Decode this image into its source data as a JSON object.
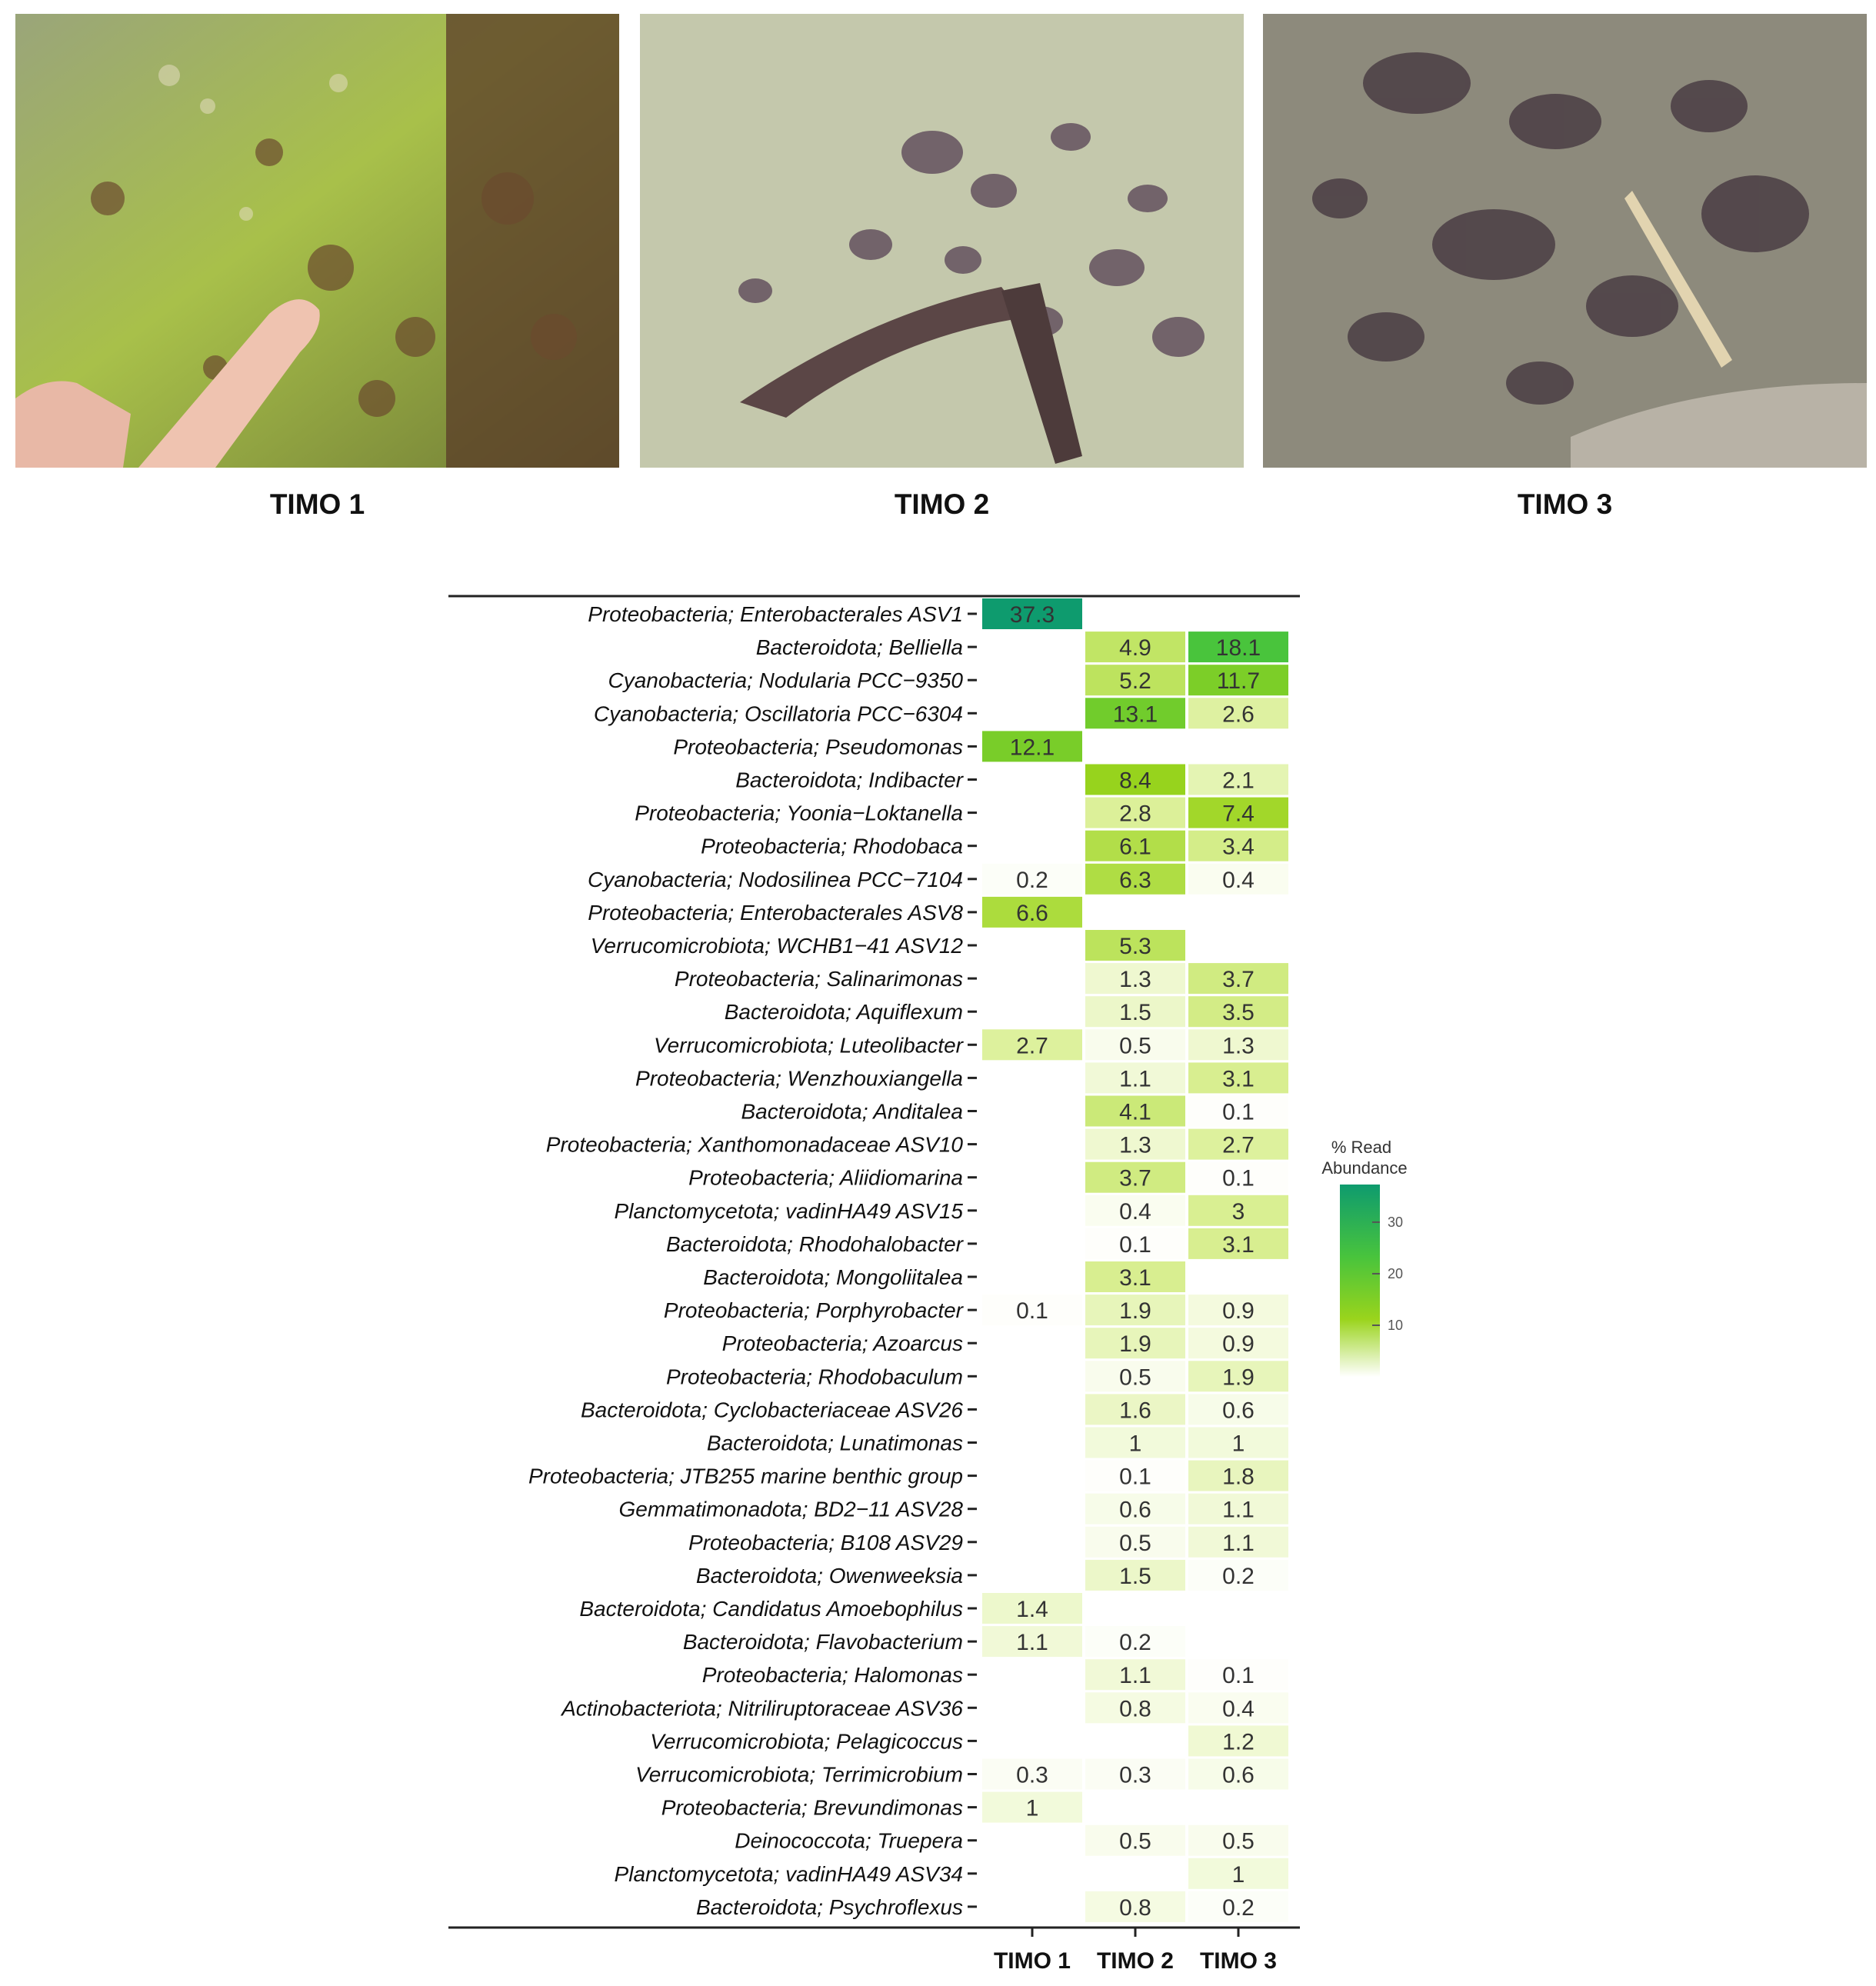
{
  "photos": [
    {
      "label": "TIMO 1"
    },
    {
      "label": "TIMO 2"
    },
    {
      "label": "TIMO 3"
    }
  ],
  "chart_data": {
    "type": "heatmap",
    "columns": [
      "TIMO 1",
      "TIMO 2",
      "TIMO 3"
    ],
    "rows": [
      {
        "taxon": "Proteobacteria; Enterobacterales ASV1",
        "values": [
          37.3,
          null,
          null
        ]
      },
      {
        "taxon": "Bacteroidota; Belliella",
        "values": [
          null,
          4.9,
          18.1
        ]
      },
      {
        "taxon": "Cyanobacteria; Nodularia PCC−9350",
        "values": [
          null,
          5.2,
          11.7
        ]
      },
      {
        "taxon": "Cyanobacteria; Oscillatoria PCC−6304",
        "values": [
          null,
          13.1,
          2.6
        ]
      },
      {
        "taxon": "Proteobacteria; Pseudomonas",
        "values": [
          12.1,
          null,
          null
        ]
      },
      {
        "taxon": "Bacteroidota; Indibacter",
        "values": [
          null,
          8.4,
          2.1
        ]
      },
      {
        "taxon": "Proteobacteria; Yoonia−Loktanella",
        "values": [
          null,
          2.8,
          7.4
        ]
      },
      {
        "taxon": "Proteobacteria; Rhodobaca",
        "values": [
          null,
          6.1,
          3.4
        ]
      },
      {
        "taxon": "Cyanobacteria; Nodosilinea PCC−7104",
        "values": [
          0.2,
          6.3,
          0.4
        ]
      },
      {
        "taxon": "Proteobacteria; Enterobacterales ASV8",
        "values": [
          6.6,
          null,
          null
        ]
      },
      {
        "taxon": "Verrucomicrobiota; WCHB1−41 ASV12",
        "values": [
          null,
          5.3,
          null
        ]
      },
      {
        "taxon": "Proteobacteria; Salinarimonas",
        "values": [
          null,
          1.3,
          3.7
        ]
      },
      {
        "taxon": "Bacteroidota; Aquiflexum",
        "values": [
          null,
          1.5,
          3.5
        ]
      },
      {
        "taxon": "Verrucomicrobiota; Luteolibacter",
        "values": [
          2.7,
          0.5,
          1.3
        ]
      },
      {
        "taxon": "Proteobacteria; Wenzhouxiangella",
        "values": [
          null,
          1.1,
          3.1
        ]
      },
      {
        "taxon": "Bacteroidota; Anditalea",
        "values": [
          null,
          4.1,
          0.1
        ]
      },
      {
        "taxon": "Proteobacteria; Xanthomonadaceae ASV10",
        "values": [
          null,
          1.3,
          2.7
        ]
      },
      {
        "taxon": "Proteobacteria; Aliidiomarina",
        "values": [
          null,
          3.7,
          0.1
        ]
      },
      {
        "taxon": "Planctomycetota; vadinHA49 ASV15",
        "values": [
          null,
          0.4,
          3
        ]
      },
      {
        "taxon": "Bacteroidota; Rhodohalobacter",
        "values": [
          null,
          0.1,
          3.1
        ]
      },
      {
        "taxon": "Bacteroidota; Mongoliitalea",
        "values": [
          null,
          3.1,
          null
        ]
      },
      {
        "taxon": "Proteobacteria; Porphyrobacter",
        "values": [
          0.1,
          1.9,
          0.9
        ]
      },
      {
        "taxon": "Proteobacteria; Azoarcus",
        "values": [
          null,
          1.9,
          0.9
        ]
      },
      {
        "taxon": "Proteobacteria; Rhodobaculum",
        "values": [
          null,
          0.5,
          1.9
        ]
      },
      {
        "taxon": "Bacteroidota; Cyclobacteriaceae ASV26",
        "values": [
          null,
          1.6,
          0.6
        ]
      },
      {
        "taxon": "Bacteroidota; Lunatimonas",
        "values": [
          null,
          1,
          1
        ]
      },
      {
        "taxon": "Proteobacteria; JTB255 marine benthic group",
        "values": [
          null,
          0.1,
          1.8
        ]
      },
      {
        "taxon": "Gemmatimonadota; BD2−11 ASV28",
        "values": [
          null,
          0.6,
          1.1
        ]
      },
      {
        "taxon": "Proteobacteria; B108 ASV29",
        "values": [
          null,
          0.5,
          1.1
        ]
      },
      {
        "taxon": "Bacteroidota; Owenweeksia",
        "values": [
          null,
          1.5,
          0.2
        ]
      },
      {
        "taxon": "Bacteroidota; Candidatus Amoebophilus",
        "values": [
          1.4,
          null,
          null
        ]
      },
      {
        "taxon": "Bacteroidota; Flavobacterium",
        "values": [
          1.1,
          0.2,
          null
        ]
      },
      {
        "taxon": "Proteobacteria; Halomonas",
        "values": [
          null,
          1.1,
          0.1
        ]
      },
      {
        "taxon": "Actinobacteriota; Nitriliruptoraceae ASV36",
        "values": [
          null,
          0.8,
          0.4
        ]
      },
      {
        "taxon": "Verrucomicrobiota; Pelagicoccus",
        "values": [
          null,
          null,
          1.2
        ]
      },
      {
        "taxon": "Verrucomicrobiota; Terrimicrobium",
        "values": [
          0.3,
          0.3,
          0.6
        ]
      },
      {
        "taxon": "Proteobacteria; Brevundimonas",
        "values": [
          1,
          null,
          null
        ]
      },
      {
        "taxon": "Deinococcota; Truepera",
        "values": [
          null,
          0.5,
          0.5
        ]
      },
      {
        "taxon": "Planctomycetota; vadinHA49 ASV34",
        "values": [
          null,
          null,
          1
        ]
      },
      {
        "taxon": "Bacteroidota; Psychroflexus",
        "values": [
          null,
          0.8,
          0.2
        ]
      }
    ],
    "legend": {
      "title_line1": "% Read",
      "title_line2": "Abundance",
      "ticks": [
        10,
        20,
        30
      ],
      "placement": "right",
      "colors": [
        "#ffffff",
        "#d9ef92",
        "#9ad41c",
        "#49c43c",
        "#0e9b6e"
      ]
    }
  }
}
